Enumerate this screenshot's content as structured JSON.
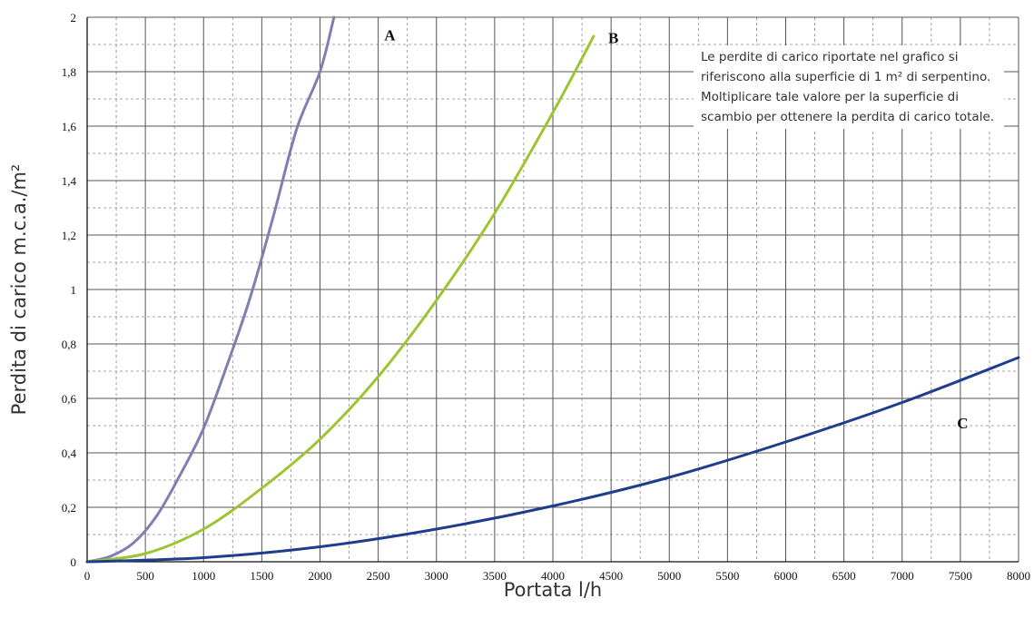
{
  "colors": {
    "A": "#7f7fb0",
    "B": "#9dc532",
    "C": "#1f3d8c",
    "grid": "#555555",
    "minor_grid": "#888888"
  },
  "note": "Le perdite di carico riportate nel grafico si riferiscono alla superficie di 1 m² di serpentino. Moltiplicare tale valore per la superficie di scambio per ottenere la perdita di carico totale.",
  "chart_data": {
    "type": "line",
    "title": "",
    "xlabel": "Portata l/h",
    "ylabel": "Perdita di carico m.c.a./m²",
    "xlim": [
      0,
      8000
    ],
    "ylim": [
      0,
      2
    ],
    "grid": true,
    "x_ticks": [
      "0",
      "500",
      "1000",
      "1500",
      "2000",
      "2500",
      "3000",
      "3500",
      "4000",
      "4500",
      "5000",
      "5500",
      "6000",
      "6500",
      "7000",
      "7500",
      "8000"
    ],
    "y_ticks": [
      "0",
      "0,2",
      "0,4",
      "0,6",
      "0,8",
      "1",
      "1,2",
      "1,4",
      "1,6",
      "1,8",
      "2"
    ],
    "series": [
      {
        "name": "A",
        "x": [
          0,
          200,
          400,
          600,
          800,
          1000,
          1200,
          1400,
          1600,
          1800,
          2000,
          2120
        ],
        "y": [
          0,
          0.02,
          0.07,
          0.17,
          0.32,
          0.49,
          0.72,
          0.97,
          1.27,
          1.59,
          1.8,
          2.0
        ]
      },
      {
        "name": "B",
        "x": [
          0,
          500,
          1000,
          1500,
          2000,
          2500,
          3000,
          3500,
          4000,
          4350
        ],
        "y": [
          0,
          0.03,
          0.12,
          0.27,
          0.45,
          0.68,
          0.96,
          1.28,
          1.65,
          1.93
        ]
      },
      {
        "name": "C",
        "x": [
          0,
          1000,
          2000,
          3000,
          4000,
          5000,
          6000,
          7000,
          8000
        ],
        "y": [
          0,
          0.015,
          0.055,
          0.12,
          0.205,
          0.31,
          0.44,
          0.585,
          0.75
        ]
      }
    ],
    "curve_labels": [
      {
        "name": "A",
        "x": 2600,
        "y": 1.915
      },
      {
        "name": "B",
        "x": 4520,
        "y": 1.905
      },
      {
        "name": "C",
        "x": 7520,
        "y": 0.49
      }
    ]
  }
}
